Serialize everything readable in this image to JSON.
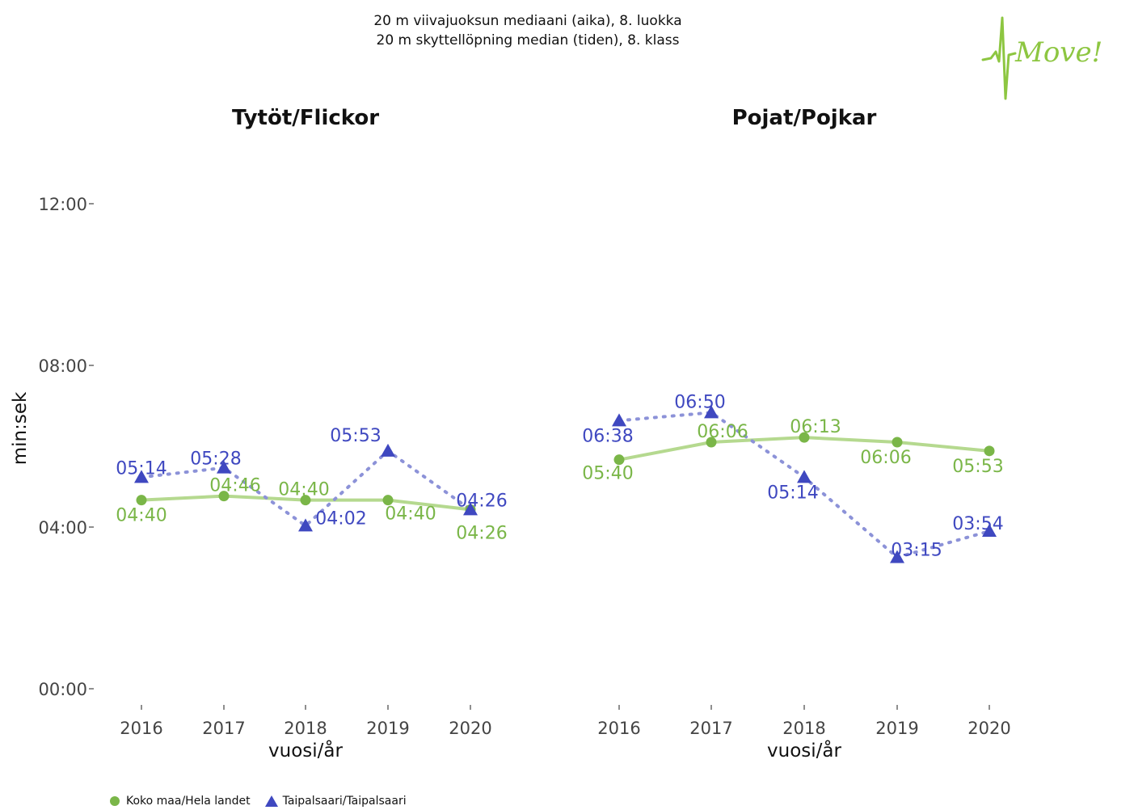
{
  "header": {
    "line1": "20 m viivajuoksun mediaani (aika), 8. luokka",
    "line2": "20 m skyttellöpning median (tiden), 8. klass"
  },
  "logo": {
    "name": "move-logo",
    "text": "Move!",
    "color": "#8dc641"
  },
  "chart_data": {
    "type": "line",
    "ylabel": "min:sek",
    "xlabel": "vuosi/år",
    "ylim": [
      0,
      780
    ],
    "y_ticks": [
      {
        "value": 0,
        "label": "00:00"
      },
      {
        "value": 240,
        "label": "04:00"
      },
      {
        "value": 480,
        "label": "08:00"
      },
      {
        "value": 720,
        "label": "12:00"
      }
    ],
    "x": [
      "2016",
      "2017",
      "2018",
      "2019",
      "2020"
    ],
    "colors": {
      "national": "#7ab648",
      "national_line": "#b5d98f",
      "local": "#3f48c0",
      "local_line": "#8c92d8"
    },
    "panels": [
      {
        "title": "Tytöt/Flickor",
        "series": [
          {
            "name": "Koko maa/Hela landet",
            "values": [
              280,
              286,
              280,
              280,
              266
            ],
            "labels": [
              "04:40",
              "04:46",
              "04:40",
              "04:40",
              "04:26"
            ]
          },
          {
            "name": "Taipalsaari/Taipalsaari",
            "values": [
              314,
              328,
              242,
              353,
              266
            ],
            "labels": [
              "05:14",
              "05:28",
              "04:02",
              "05:53",
              "04:26"
            ]
          }
        ]
      },
      {
        "title": "Pojat/Pojkar",
        "series": [
          {
            "name": "Koko maa/Hela landet",
            "values": [
              340,
              366,
              373,
              366,
              353
            ],
            "labels": [
              "05:40",
              "06:06",
              "06:13",
              "06:06",
              "05:53"
            ]
          },
          {
            "name": "Taipalsaari/Taipalsaari",
            "values": [
              398,
              410,
              314,
              195,
              234
            ],
            "labels": [
              "06:38",
              "06:50",
              "05:14",
              "03:15",
              "03:54"
            ]
          }
        ]
      }
    ],
    "legend": {
      "position": "bottom-left",
      "entries": [
        {
          "name": "Koko maa/Hela landet",
          "marker": "circle"
        },
        {
          "name": "Taipalsaari/Taipalsaari",
          "marker": "triangle"
        }
      ]
    }
  }
}
